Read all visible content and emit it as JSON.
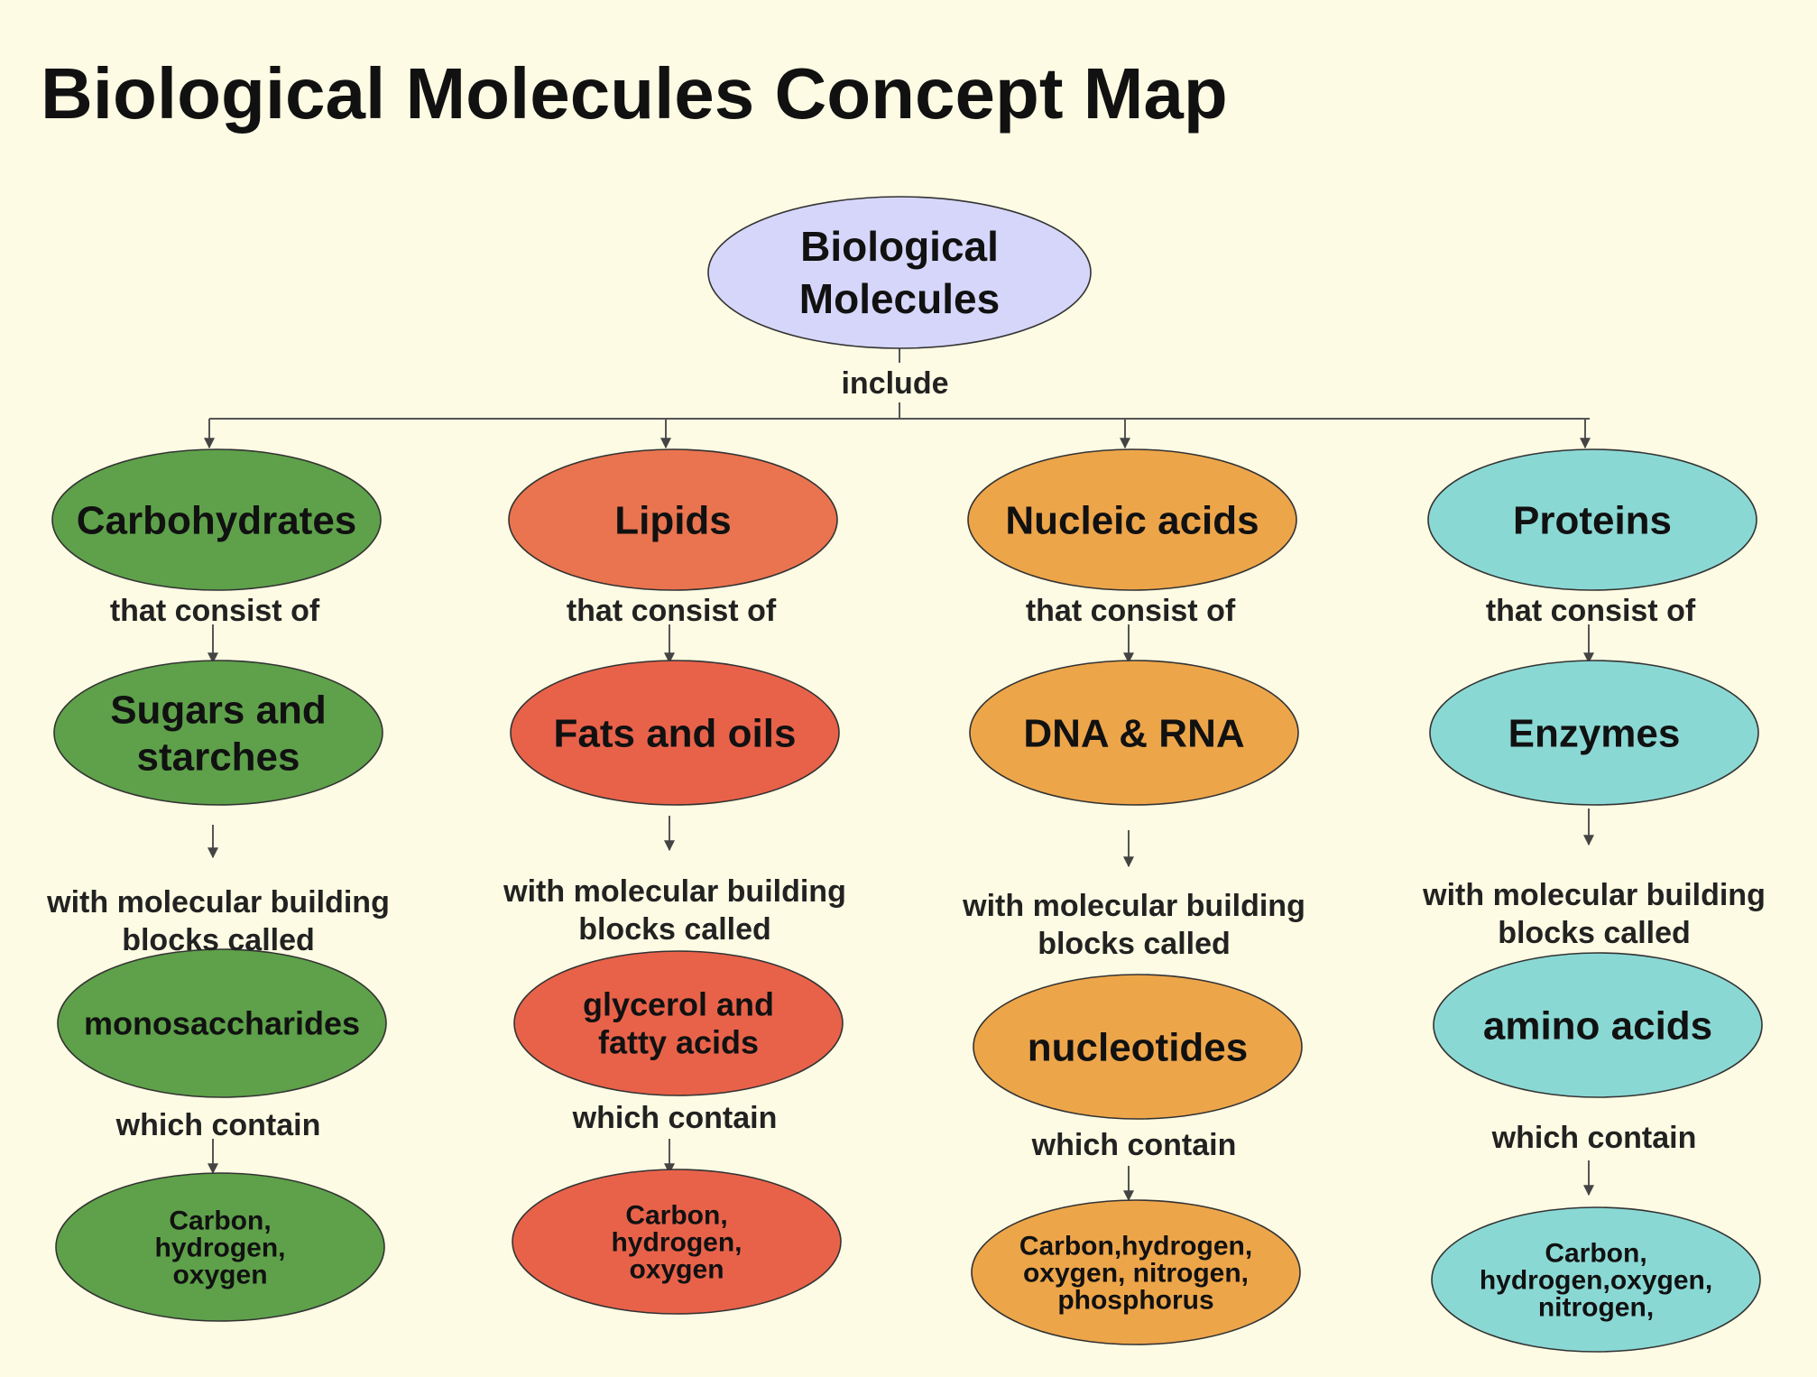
{
  "title": "Biological Molecules Concept Map",
  "colors": {
    "background": "#fdfbe3",
    "root": "#d6d6fa",
    "carbohydrates": "#5ea14a",
    "lipids_top": "#e9744f",
    "lipids": "#e8624a",
    "nucleic_acids": "#eda54a",
    "proteins": "#8ad8d4",
    "line": "#555555"
  },
  "root": {
    "label_lines": [
      "Biological",
      "Molecules"
    ],
    "link": "include"
  },
  "columns": [
    {
      "key": "carbohydrates",
      "category": [
        "Carbohydrates"
      ],
      "link1": [
        "that consist of"
      ],
      "group": [
        "Sugars and",
        "starches"
      ],
      "link2": [
        "with molecular building",
        "blocks called"
      ],
      "unit": [
        "monosaccharides"
      ],
      "link3": [
        "which contain"
      ],
      "elements": [
        "Carbon,",
        "hydrogen,",
        "oxygen"
      ]
    },
    {
      "key": "lipids",
      "category": [
        "Lipids"
      ],
      "link1": [
        "that consist of"
      ],
      "group": [
        "Fats and oils"
      ],
      "link2": [
        "with molecular building",
        "blocks called"
      ],
      "unit": [
        "glycerol and",
        "fatty acids"
      ],
      "link3": [
        "which contain"
      ],
      "elements": [
        "Carbon,",
        "hydrogen,",
        "oxygen"
      ]
    },
    {
      "key": "nucleic_acids",
      "category": [
        "Nucleic acids"
      ],
      "link1": [
        "that consist of"
      ],
      "group": [
        "DNA & RNA"
      ],
      "link2": [
        "with molecular building",
        "blocks called"
      ],
      "unit": [
        "nucleotides"
      ],
      "link3": [
        "which contain"
      ],
      "elements": [
        "Carbon,hydrogen,",
        "oxygen, nitrogen,",
        "phosphorus"
      ]
    },
    {
      "key": "proteins",
      "category": [
        "Proteins"
      ],
      "link1": [
        "that consist of"
      ],
      "group": [
        "Enzymes"
      ],
      "link2": [
        "with molecular building",
        "blocks called"
      ],
      "unit": [
        "amino acids"
      ],
      "link3": [
        "which contain"
      ],
      "elements": [
        "Carbon,",
        "hydrogen,oxygen,",
        "nitrogen,"
      ]
    }
  ]
}
